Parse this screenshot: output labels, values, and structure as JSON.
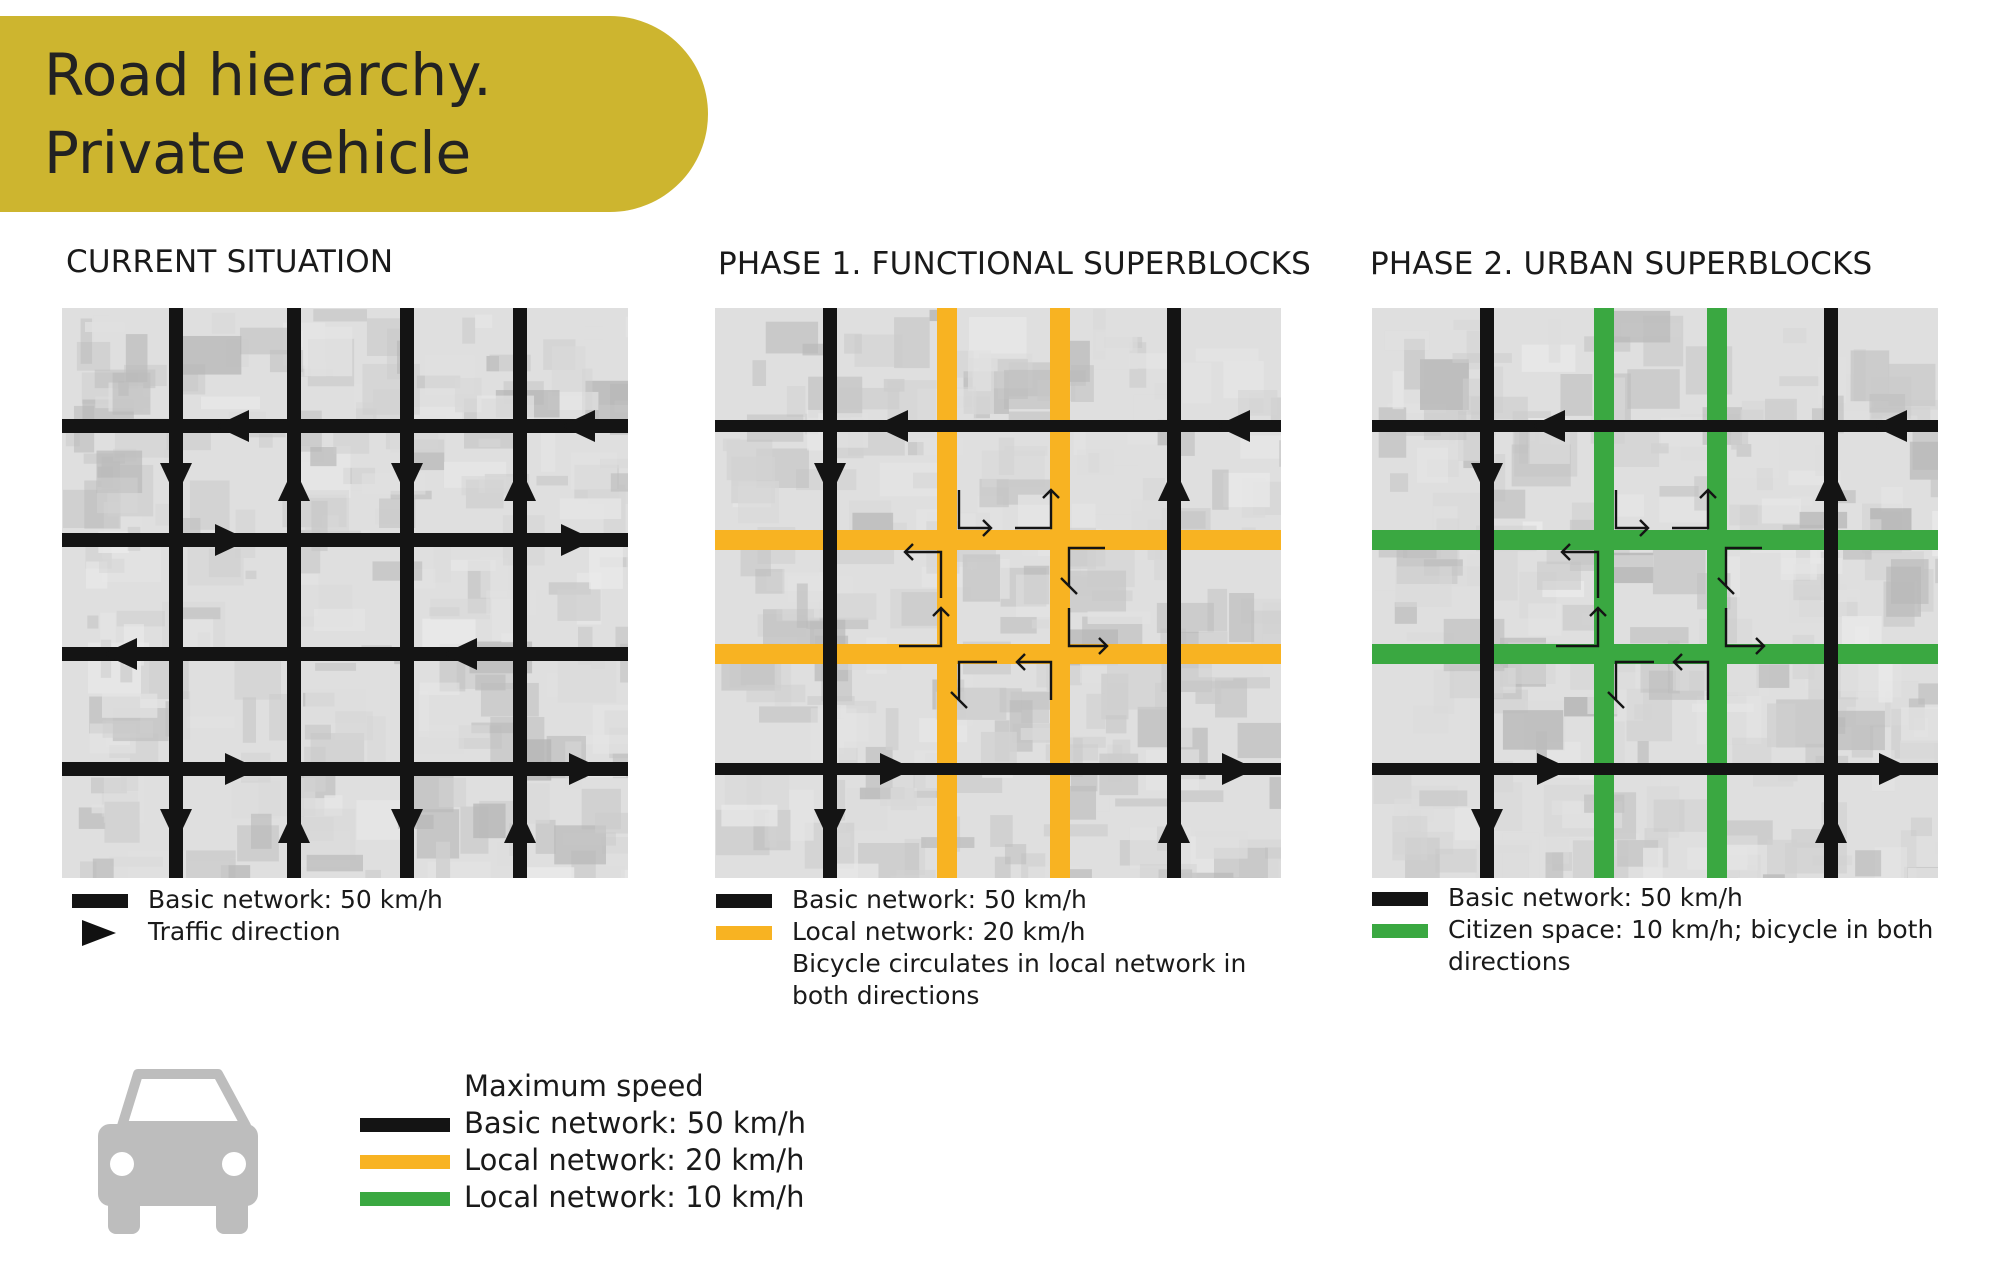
{
  "header": {
    "title_line1": "Road hierarchy.",
    "title_line2": "Private vehicle"
  },
  "colors": {
    "banner": "#cdb52f",
    "basic": "#141414",
    "local20": "#f8b322",
    "local10": "#3aa841",
    "car": "#bdbdbd"
  },
  "phases": [
    {
      "title": "CURRENT SITUATION",
      "legend": [
        {
          "kind": "line",
          "color": "#141414",
          "lines": [
            "Basic network: 50 km/h"
          ]
        },
        {
          "kind": "arrow",
          "color": "#141414",
          "lines": [
            "Traffic direction"
          ]
        }
      ]
    },
    {
      "title": "PHASE 1. FUNCTIONAL SUPERBLOCKS",
      "legend": [
        {
          "kind": "line",
          "color": "#141414",
          "lines": [
            "Basic network: 50 km/h"
          ]
        },
        {
          "kind": "line",
          "color": "#f8b322",
          "lines": [
            "Local network: 20 km/h",
            "Bicycle circulates in local network in",
            "both directions"
          ]
        }
      ]
    },
    {
      "title": "PHASE 2. URBAN SUPERBLOCKS",
      "legend": [
        {
          "kind": "line",
          "color": "#141414",
          "lines": [
            "Basic network: 50 km/h"
          ]
        },
        {
          "kind": "line",
          "color": "#3aa841",
          "lines": [
            "Citizen space: 10 km/h; bicycle in both",
            "directions"
          ]
        }
      ]
    }
  ],
  "speed_legend": {
    "title": "Maximum speed",
    "items": [
      {
        "color": "#141414",
        "label": "Basic network: 50 km/h"
      },
      {
        "color": "#f8b322",
        "label": "Local network: 20 km/h"
      },
      {
        "color": "#3aa841",
        "label": "Local network: 10 km/h"
      }
    ]
  }
}
